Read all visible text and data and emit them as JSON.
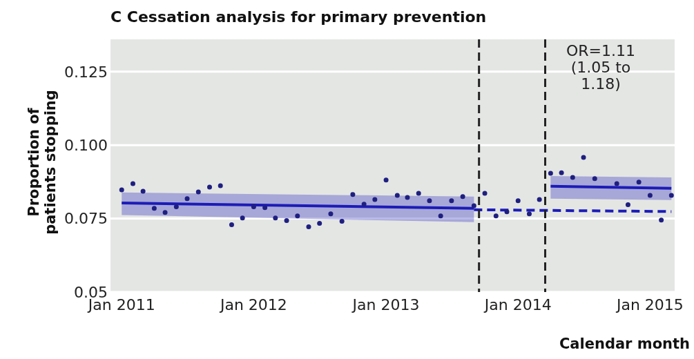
{
  "chart_data": {
    "type": "scatter",
    "title": "C Cessation analysis for primary prevention",
    "xlabel": "Calendar month",
    "ylabel": "Proportion of patients stopping",
    "xlim": [
      "2010-12-01",
      "2015-03-10"
    ],
    "xticks": [
      {
        "value": "2011-01",
        "label": "Jan 2011"
      },
      {
        "value": "2012-01",
        "label": "Jan 2012"
      },
      {
        "value": "2013-01",
        "label": "Jan 2013"
      },
      {
        "value": "2014-01",
        "label": "Jan 2014"
      },
      {
        "value": "2015-01",
        "label": "Jan 2015"
      }
    ],
    "ylim": [
      0.05,
      0.136
    ],
    "yticks": [
      0.05,
      0.075,
      {
        "value": 0.1,
        "label": "0.100"
      },
      0.125
    ],
    "grid": "y",
    "ref_lines": [
      {
        "axis": "x",
        "value": "2013-09-15",
        "color": "#222222",
        "line_style": "dashed"
      },
      {
        "axis": "x",
        "value": "2014-03-17",
        "color": "#222222",
        "line_style": "dashed"
      }
    ],
    "annotations": [
      "OR=1.11 (1.05 to 1.18)"
    ],
    "series": [
      {
        "type": "line",
        "color": "#1c1cb8",
        "line_style": "solid",
        "x": [
          "2011-01",
          "2013-09"
        ],
        "values": [
          0.0803,
          0.0785
        ],
        "lower": [
          0.0762,
          0.0738
        ],
        "upper": [
          0.0839,
          0.0825
        ]
      },
      {
        "type": "line",
        "color": "#1c1cb8",
        "line_style": "dashed",
        "x": [
          "2013-09",
          "2015-03"
        ],
        "values": [
          0.078,
          0.0774
        ]
      },
      {
        "type": "line",
        "color": "#1c1cb8",
        "line_style": "solid",
        "x": [
          "2014-04",
          "2015-03"
        ],
        "values": [
          0.086,
          0.0853
        ],
        "lower": [
          0.0818,
          0.0813
        ],
        "upper": [
          0.0895,
          0.089
        ]
      },
      {
        "color": "#1f1f80",
        "marker": "circle",
        "x": [
          "2011-01",
          "2011-02",
          "2011-03",
          "2011-04",
          "2011-05",
          "2011-06",
          "2011-07",
          "2011-08",
          "2011-09",
          "2011-10",
          "2011-11",
          "2011-12",
          "2012-01",
          "2012-02",
          "2012-03",
          "2012-04",
          "2012-05",
          "2012-06",
          "2012-07",
          "2012-08",
          "2012-09",
          "2012-10",
          "2012-11",
          "2012-12",
          "2013-01",
          "2013-02",
          "2013-03",
          "2013-04",
          "2013-05",
          "2013-06",
          "2013-07",
          "2013-08",
          "2013-09",
          "2013-10",
          "2013-11",
          "2013-12",
          "2014-01",
          "2014-02",
          "2014-03",
          "2014-04",
          "2014-05",
          "2014-06",
          "2014-07",
          "2014-08",
          "2014-09",
          "2014-10",
          "2014-11",
          "2014-12",
          "2015-01",
          "2015-02",
          "2015-03"
        ],
        "values": [
          0.0848,
          0.0869,
          0.0843,
          0.0785,
          0.0771,
          0.079,
          0.0818,
          0.0841,
          0.0857,
          0.0862,
          0.0729,
          0.0752,
          0.079,
          0.0787,
          0.0752,
          0.0743,
          0.0759,
          0.0722,
          0.0734,
          0.0766,
          0.0741,
          0.0832,
          0.0799,
          0.0815,
          0.0881,
          0.0829,
          0.0822,
          0.0836,
          0.0811,
          0.0759,
          0.0811,
          0.0825,
          0.0794,
          0.0836,
          0.0759,
          0.0773,
          0.0811,
          0.0766,
          0.0815,
          0.0904,
          0.0906,
          0.089,
          0.0958,
          0.0886,
          null,
          0.0869,
          0.0797,
          0.0874,
          0.0829,
          0.0745,
          0.0829
        ]
      }
    ]
  }
}
